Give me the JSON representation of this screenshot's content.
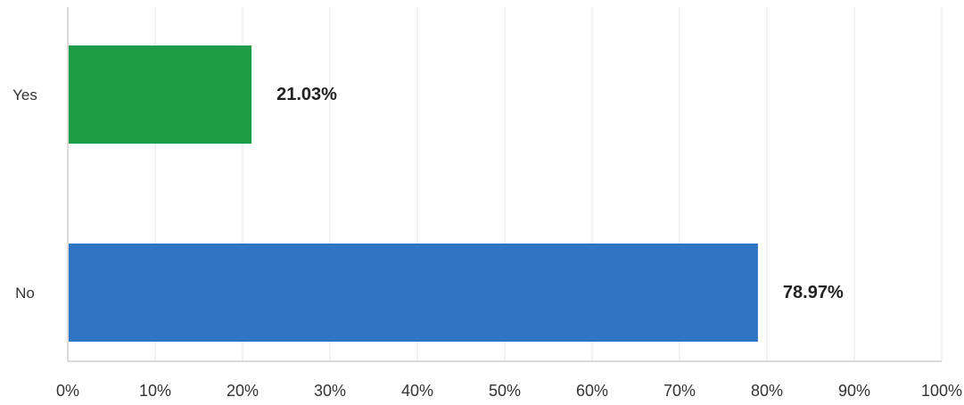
{
  "chart_data": {
    "type": "bar",
    "orientation": "horizontal",
    "categories": [
      "Yes",
      "No"
    ],
    "values": [
      21.03,
      78.97
    ],
    "data_labels": [
      "21.03%",
      "78.97%"
    ],
    "colors": [
      "#1e9b45",
      "#2f75c4"
    ],
    "xlim": [
      0,
      100
    ],
    "x_ticks": [
      0,
      10,
      20,
      30,
      40,
      50,
      60,
      70,
      80,
      90,
      100
    ],
    "x_tick_labels": [
      "0%",
      "10%",
      "20%",
      "30%",
      "40%",
      "50%",
      "60%",
      "70%",
      "80%",
      "90%",
      "100%"
    ],
    "grid": true,
    "legend": "none",
    "title": "",
    "xlabel": "",
    "ylabel": ""
  }
}
